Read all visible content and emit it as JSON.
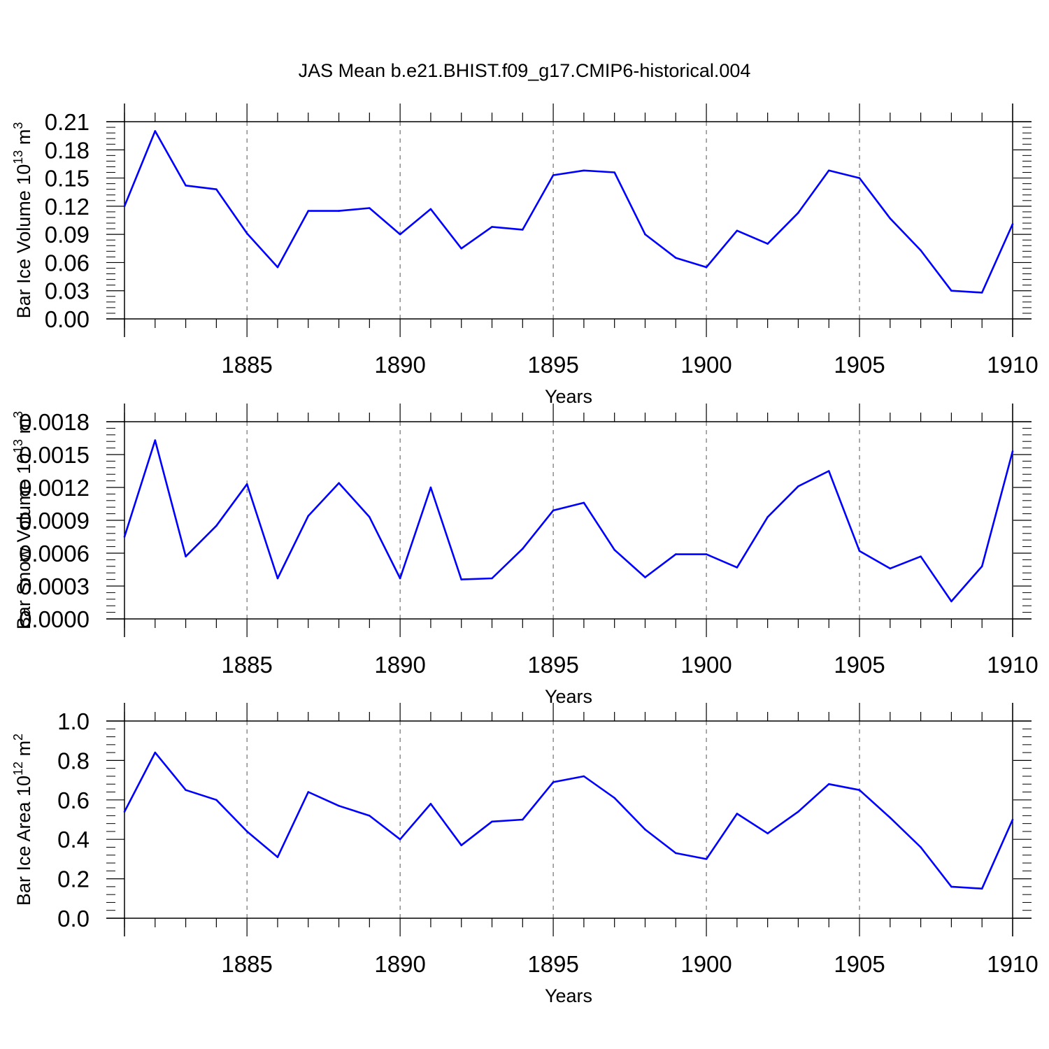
{
  "title": "JAS Mean b.e21.BHIST.f09_g17.CMIP6-historical.004",
  "colors": {
    "line": "#0000ff",
    "axis": "#000000",
    "grid": "#555555"
  },
  "chart_data": [
    {
      "type": "line",
      "ylabel_main": "Bar Ice Volume 10",
      "ylabel_exp": "13",
      "ylabel_unit": " m",
      "ylabel_unit_exp": "3",
      "xlabel": "Years",
      "xlim": [
        1881,
        1910
      ],
      "ylim": [
        0,
        0.21
      ],
      "grid": "vertical dashed at major x ticks",
      "x_ticks": [
        "1885",
        "1890",
        "1895",
        "1900",
        "1905",
        "1910"
      ],
      "y_ticks": [
        "0.00",
        "0.03",
        "0.06",
        "0.09",
        "0.12",
        "0.15",
        "0.18",
        "0.21"
      ],
      "x": [
        1881,
        1882,
        1883,
        1884,
        1885,
        1886,
        1887,
        1888,
        1889,
        1890,
        1891,
        1892,
        1893,
        1894,
        1895,
        1896,
        1897,
        1898,
        1899,
        1900,
        1901,
        1902,
        1903,
        1904,
        1905,
        1906,
        1907,
        1908,
        1909,
        1910
      ],
      "values": [
        0.12,
        0.2,
        0.142,
        0.138,
        0.091,
        0.055,
        0.115,
        0.115,
        0.118,
        0.09,
        0.117,
        0.075,
        0.098,
        0.095,
        0.153,
        0.158,
        0.156,
        0.09,
        0.065,
        0.055,
        0.094,
        0.08,
        0.113,
        0.158,
        0.15,
        0.107,
        0.073,
        0.03,
        0.028,
        0.101
      ]
    },
    {
      "type": "line",
      "ylabel_main": "Bar Snow Volume 10",
      "ylabel_exp": "13",
      "ylabel_unit": " m",
      "ylabel_unit_exp": "3",
      "xlabel": "Years",
      "xlim": [
        1881,
        1910
      ],
      "ylim": [
        0,
        0.0018
      ],
      "grid": "vertical dashed at major x ticks",
      "x_ticks": [
        "1885",
        "1890",
        "1895",
        "1900",
        "1905",
        "1910"
      ],
      "y_ticks": [
        "0.0000",
        "0.0003",
        "0.0006",
        "0.0009",
        "0.0012",
        "0.0015",
        "0.0018"
      ],
      "x": [
        1881,
        1882,
        1883,
        1884,
        1885,
        1886,
        1887,
        1888,
        1889,
        1890,
        1891,
        1892,
        1893,
        1894,
        1895,
        1896,
        1897,
        1898,
        1899,
        1900,
        1901,
        1902,
        1903,
        1904,
        1905,
        1906,
        1907,
        1908,
        1909,
        1910
      ],
      "values": [
        0.00075,
        0.00163,
        0.00057,
        0.00085,
        0.00123,
        0.00037,
        0.00094,
        0.00124,
        0.00093,
        0.00037,
        0.0012,
        0.00036,
        0.00037,
        0.00064,
        0.00099,
        0.00106,
        0.00063,
        0.00038,
        0.00059,
        0.00059,
        0.00047,
        0.00093,
        0.00121,
        0.00135,
        0.00062,
        0.00046,
        0.00057,
        0.00016,
        0.00048,
        0.00153
      ]
    },
    {
      "type": "line",
      "ylabel_main": "Bar Ice Area 10",
      "ylabel_exp": "12",
      "ylabel_unit": " m",
      "ylabel_unit_exp": "2",
      "xlabel": "Years",
      "xlim": [
        1881,
        1910
      ],
      "ylim": [
        0,
        1.0
      ],
      "grid": "vertical dashed at major x ticks",
      "x_ticks": [
        "1885",
        "1890",
        "1895",
        "1900",
        "1905",
        "1910"
      ],
      "y_ticks": [
        "0.0",
        "0.2",
        "0.4",
        "0.6",
        "0.8",
        "1.0"
      ],
      "x": [
        1881,
        1882,
        1883,
        1884,
        1885,
        1886,
        1887,
        1888,
        1889,
        1890,
        1891,
        1892,
        1893,
        1894,
        1895,
        1896,
        1897,
        1898,
        1899,
        1900,
        1901,
        1902,
        1903,
        1904,
        1905,
        1906,
        1907,
        1908,
        1909,
        1910
      ],
      "values": [
        0.54,
        0.84,
        0.65,
        0.6,
        0.44,
        0.31,
        0.64,
        0.57,
        0.52,
        0.4,
        0.58,
        0.37,
        0.49,
        0.5,
        0.69,
        0.72,
        0.61,
        0.45,
        0.33,
        0.3,
        0.53,
        0.43,
        0.54,
        0.68,
        0.65,
        0.51,
        0.36,
        0.16,
        0.15,
        0.5
      ]
    }
  ]
}
